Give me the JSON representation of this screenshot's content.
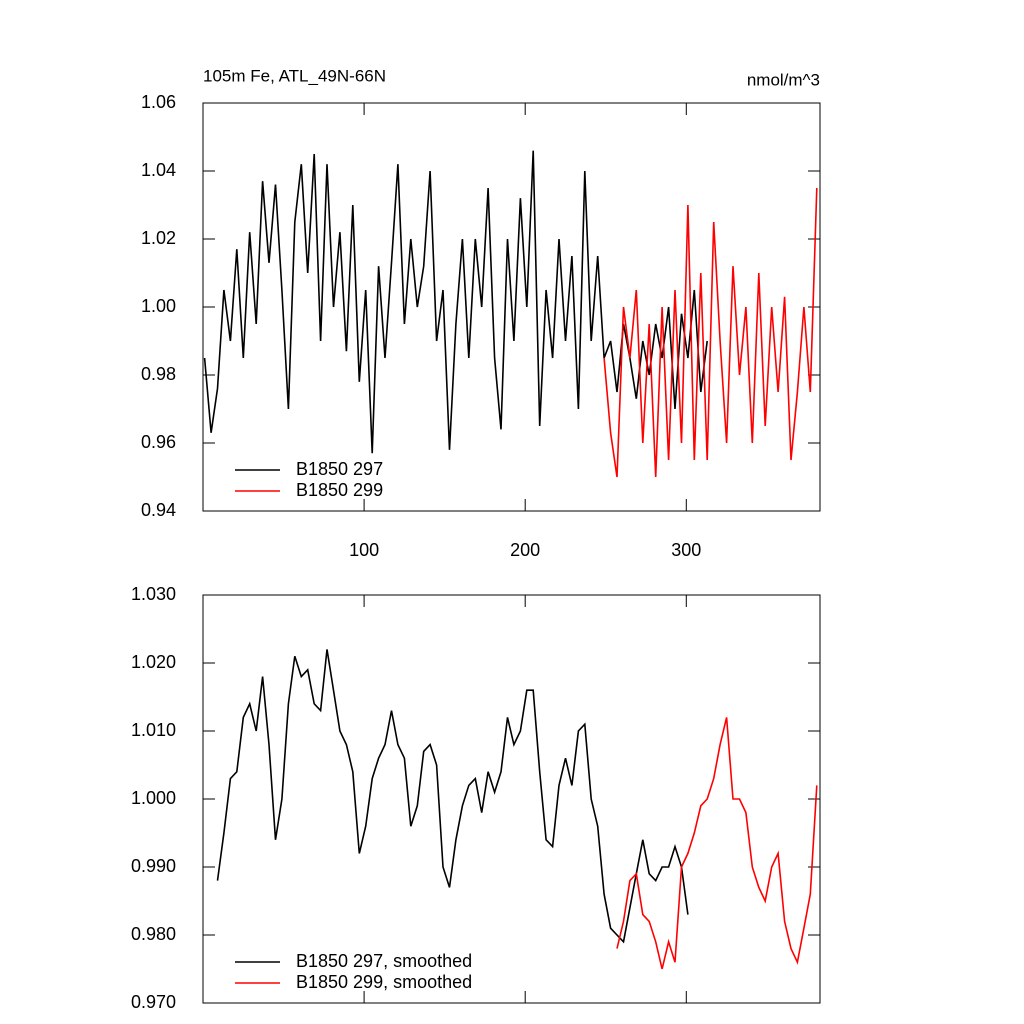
{
  "chart_data": [
    {
      "type": "line",
      "title": "105m Fe, ATL_49N-66N",
      "units": "nmol/m^3",
      "x": [
        1,
        5,
        9,
        13,
        17,
        21,
        25,
        29,
        33,
        37,
        41,
        45,
        49,
        53,
        57,
        61,
        65,
        69,
        73,
        77,
        81,
        85,
        89,
        93,
        97,
        101,
        105,
        109,
        113,
        117,
        121,
        125,
        129,
        133,
        137,
        141,
        145,
        149,
        153,
        157,
        161,
        165,
        169,
        173,
        177,
        181,
        185,
        189,
        193,
        197,
        201,
        205,
        209,
        213,
        217,
        221,
        225,
        229,
        233,
        237,
        241,
        245,
        249,
        253,
        257,
        261,
        265,
        269,
        273,
        277,
        281,
        285,
        289,
        293,
        297,
        301,
        305,
        309,
        313,
        317,
        321,
        325,
        329,
        333,
        337,
        341,
        345,
        349,
        353,
        357,
        361,
        365,
        369,
        373,
        377,
        381
      ],
      "series": [
        {
          "name": "B1850 297",
          "color": "#000000",
          "values": [
            0.985,
            0.963,
            0.976,
            1.005,
            0.99,
            1.017,
            0.985,
            1.022,
            0.995,
            1.037,
            1.013,
            1.036,
            1.005,
            0.97,
            1.025,
            1.042,
            1.01,
            1.045,
            0.99,
            1.042,
            1.0,
            1.022,
            0.987,
            1.03,
            0.978,
            1.005,
            0.957,
            1.012,
            0.985,
            1.013,
            1.042,
            0.995,
            1.02,
            1.0,
            1.012,
            1.04,
            0.99,
            1.005,
            0.958,
            0.995,
            1.02,
            0.985,
            1.02,
            1.0,
            1.035,
            0.985,
            0.964,
            1.02,
            0.99,
            1.032,
            1.0,
            1.046,
            0.965,
            1.005,
            0.985,
            1.02,
            0.99,
            1.015,
            0.97,
            1.04,
            0.99,
            1.015,
            0.985,
            0.99,
            0.975,
            0.995,
            0.985,
            0.973,
            0.99,
            0.98,
            0.995,
            0.985,
            1.0,
            0.97,
            0.998,
            0.985,
            1.005,
            0.975,
            0.99,
            null,
            null,
            null,
            null,
            null,
            null,
            null,
            null,
            null,
            null,
            null,
            null,
            null,
            null,
            null,
            null,
            null
          ]
        },
        {
          "name": "B1850 299",
          "color": "#ff0000",
          "values": [
            null,
            null,
            null,
            null,
            null,
            null,
            null,
            null,
            null,
            null,
            null,
            null,
            null,
            null,
            null,
            null,
            null,
            null,
            null,
            null,
            null,
            null,
            null,
            null,
            null,
            null,
            null,
            null,
            null,
            null,
            null,
            null,
            null,
            null,
            null,
            null,
            null,
            null,
            null,
            null,
            null,
            null,
            null,
            null,
            null,
            null,
            null,
            null,
            null,
            null,
            null,
            null,
            null,
            null,
            null,
            null,
            null,
            null,
            null,
            null,
            null,
            null,
            0.985,
            0.963,
            0.95,
            1.0,
            0.985,
            1.005,
            0.96,
            0.995,
            0.95,
            1.0,
            0.955,
            1.005,
            0.96,
            1.03,
            0.955,
            1.01,
            0.955,
            1.025,
            0.99,
            0.96,
            1.012,
            0.98,
            1.0,
            0.96,
            1.01,
            0.965,
            1.0,
            0.975,
            1.003,
            0.955,
            0.975,
            1.0,
            0.975,
            1.035
          ]
        }
      ],
      "xlim": [
        0,
        383
      ],
      "xticks": [
        100,
        200,
        300
      ],
      "xtick_labels": true,
      "ylim": [
        0.94,
        1.06
      ],
      "yticks": [
        0.94,
        0.96,
        0.98,
        {
          "value": 1,
          "label": "1.00"
        },
        1.02,
        1.04,
        1.06
      ],
      "legend": "lower left"
    },
    {
      "type": "line",
      "x": [
        1,
        5,
        9,
        13,
        17,
        21,
        25,
        29,
        33,
        37,
        41,
        45,
        49,
        53,
        57,
        61,
        65,
        69,
        73,
        77,
        81,
        85,
        89,
        93,
        97,
        101,
        105,
        109,
        113,
        117,
        121,
        125,
        129,
        133,
        137,
        141,
        145,
        149,
        153,
        157,
        161,
        165,
        169,
        173,
        177,
        181,
        185,
        189,
        193,
        197,
        201,
        205,
        209,
        213,
        217,
        221,
        225,
        229,
        233,
        237,
        241,
        245,
        249,
        253,
        257,
        261,
        265,
        269,
        273,
        277,
        281,
        285,
        289,
        293,
        297,
        301,
        305,
        309,
        313,
        317,
        321,
        325,
        329,
        333,
        337,
        341,
        345,
        349,
        353,
        357,
        361,
        365,
        369,
        373,
        377,
        381
      ],
      "series": [
        {
          "name": "B1850 297, smoothed",
          "color": "#000000",
          "values": [
            null,
            null,
            0.988,
            0.995,
            1.003,
            1.004,
            1.012,
            1.014,
            1.01,
            1.018,
            1.008,
            0.994,
            1.0,
            1.014,
            1.021,
            1.018,
            1.019,
            1.014,
            1.013,
            1.022,
            1.016,
            1.01,
            1.008,
            1.004,
            0.992,
            0.996,
            1.003,
            1.006,
            1.008,
            1.013,
            1.008,
            1.006,
            0.996,
            0.999,
            1.007,
            1.008,
            1.005,
            0.99,
            0.987,
            0.994,
            0.999,
            1.002,
            1.003,
            0.998,
            1.004,
            1.001,
            1.004,
            1.012,
            1.008,
            1.01,
            1.016,
            1.016,
            1.004,
            0.994,
            0.993,
            1.002,
            1.006,
            1.002,
            1.01,
            1.011,
            1.0,
            0.996,
            0.986,
            0.981,
            0.98,
            0.979,
            0.984,
            0.989,
            0.994,
            0.989,
            0.988,
            0.99,
            0.99,
            0.993,
            0.99,
            0.983,
            null,
            null,
            null,
            null,
            null,
            null,
            null,
            null,
            null,
            null,
            null,
            null,
            null,
            null,
            null,
            null,
            null,
            null,
            null,
            null
          ]
        },
        {
          "name": "B1850 299, smoothed",
          "color": "#ff0000",
          "values": [
            null,
            null,
            null,
            null,
            null,
            null,
            null,
            null,
            null,
            null,
            null,
            null,
            null,
            null,
            null,
            null,
            null,
            null,
            null,
            null,
            null,
            null,
            null,
            null,
            null,
            null,
            null,
            null,
            null,
            null,
            null,
            null,
            null,
            null,
            null,
            null,
            null,
            null,
            null,
            null,
            null,
            null,
            null,
            null,
            null,
            null,
            null,
            null,
            null,
            null,
            null,
            null,
            null,
            null,
            null,
            null,
            null,
            null,
            null,
            null,
            null,
            null,
            null,
            null,
            0.978,
            0.982,
            0.988,
            0.989,
            0.983,
            0.982,
            0.979,
            0.975,
            0.979,
            0.976,
            0.99,
            0.992,
            0.995,
            0.999,
            1.0,
            1.003,
            1.008,
            1.012,
            1.0,
            1.0,
            0.998,
            0.99,
            0.987,
            0.985,
            0.99,
            0.992,
            0.982,
            0.978,
            0.976,
            0.981,
            0.986,
            1.002
          ]
        }
      ],
      "xlim": [
        0,
        383
      ],
      "xticks": [
        100,
        200,
        300
      ],
      "xtick_labels": false,
      "ylim": [
        0.97,
        1.03
      ],
      "yticks": [
        {
          "value": 0.97,
          "label": "0.970"
        },
        {
          "value": 0.98,
          "label": "0.980"
        },
        {
          "value": 0.99,
          "label": "0.990"
        },
        {
          "value": 1,
          "label": "1.000"
        },
        {
          "value": 1.01,
          "label": "1.010"
        },
        {
          "value": 1.02,
          "label": "1.020"
        },
        {
          "value": 1.03,
          "label": "1.030"
        }
      ],
      "legend": "lower left"
    }
  ]
}
